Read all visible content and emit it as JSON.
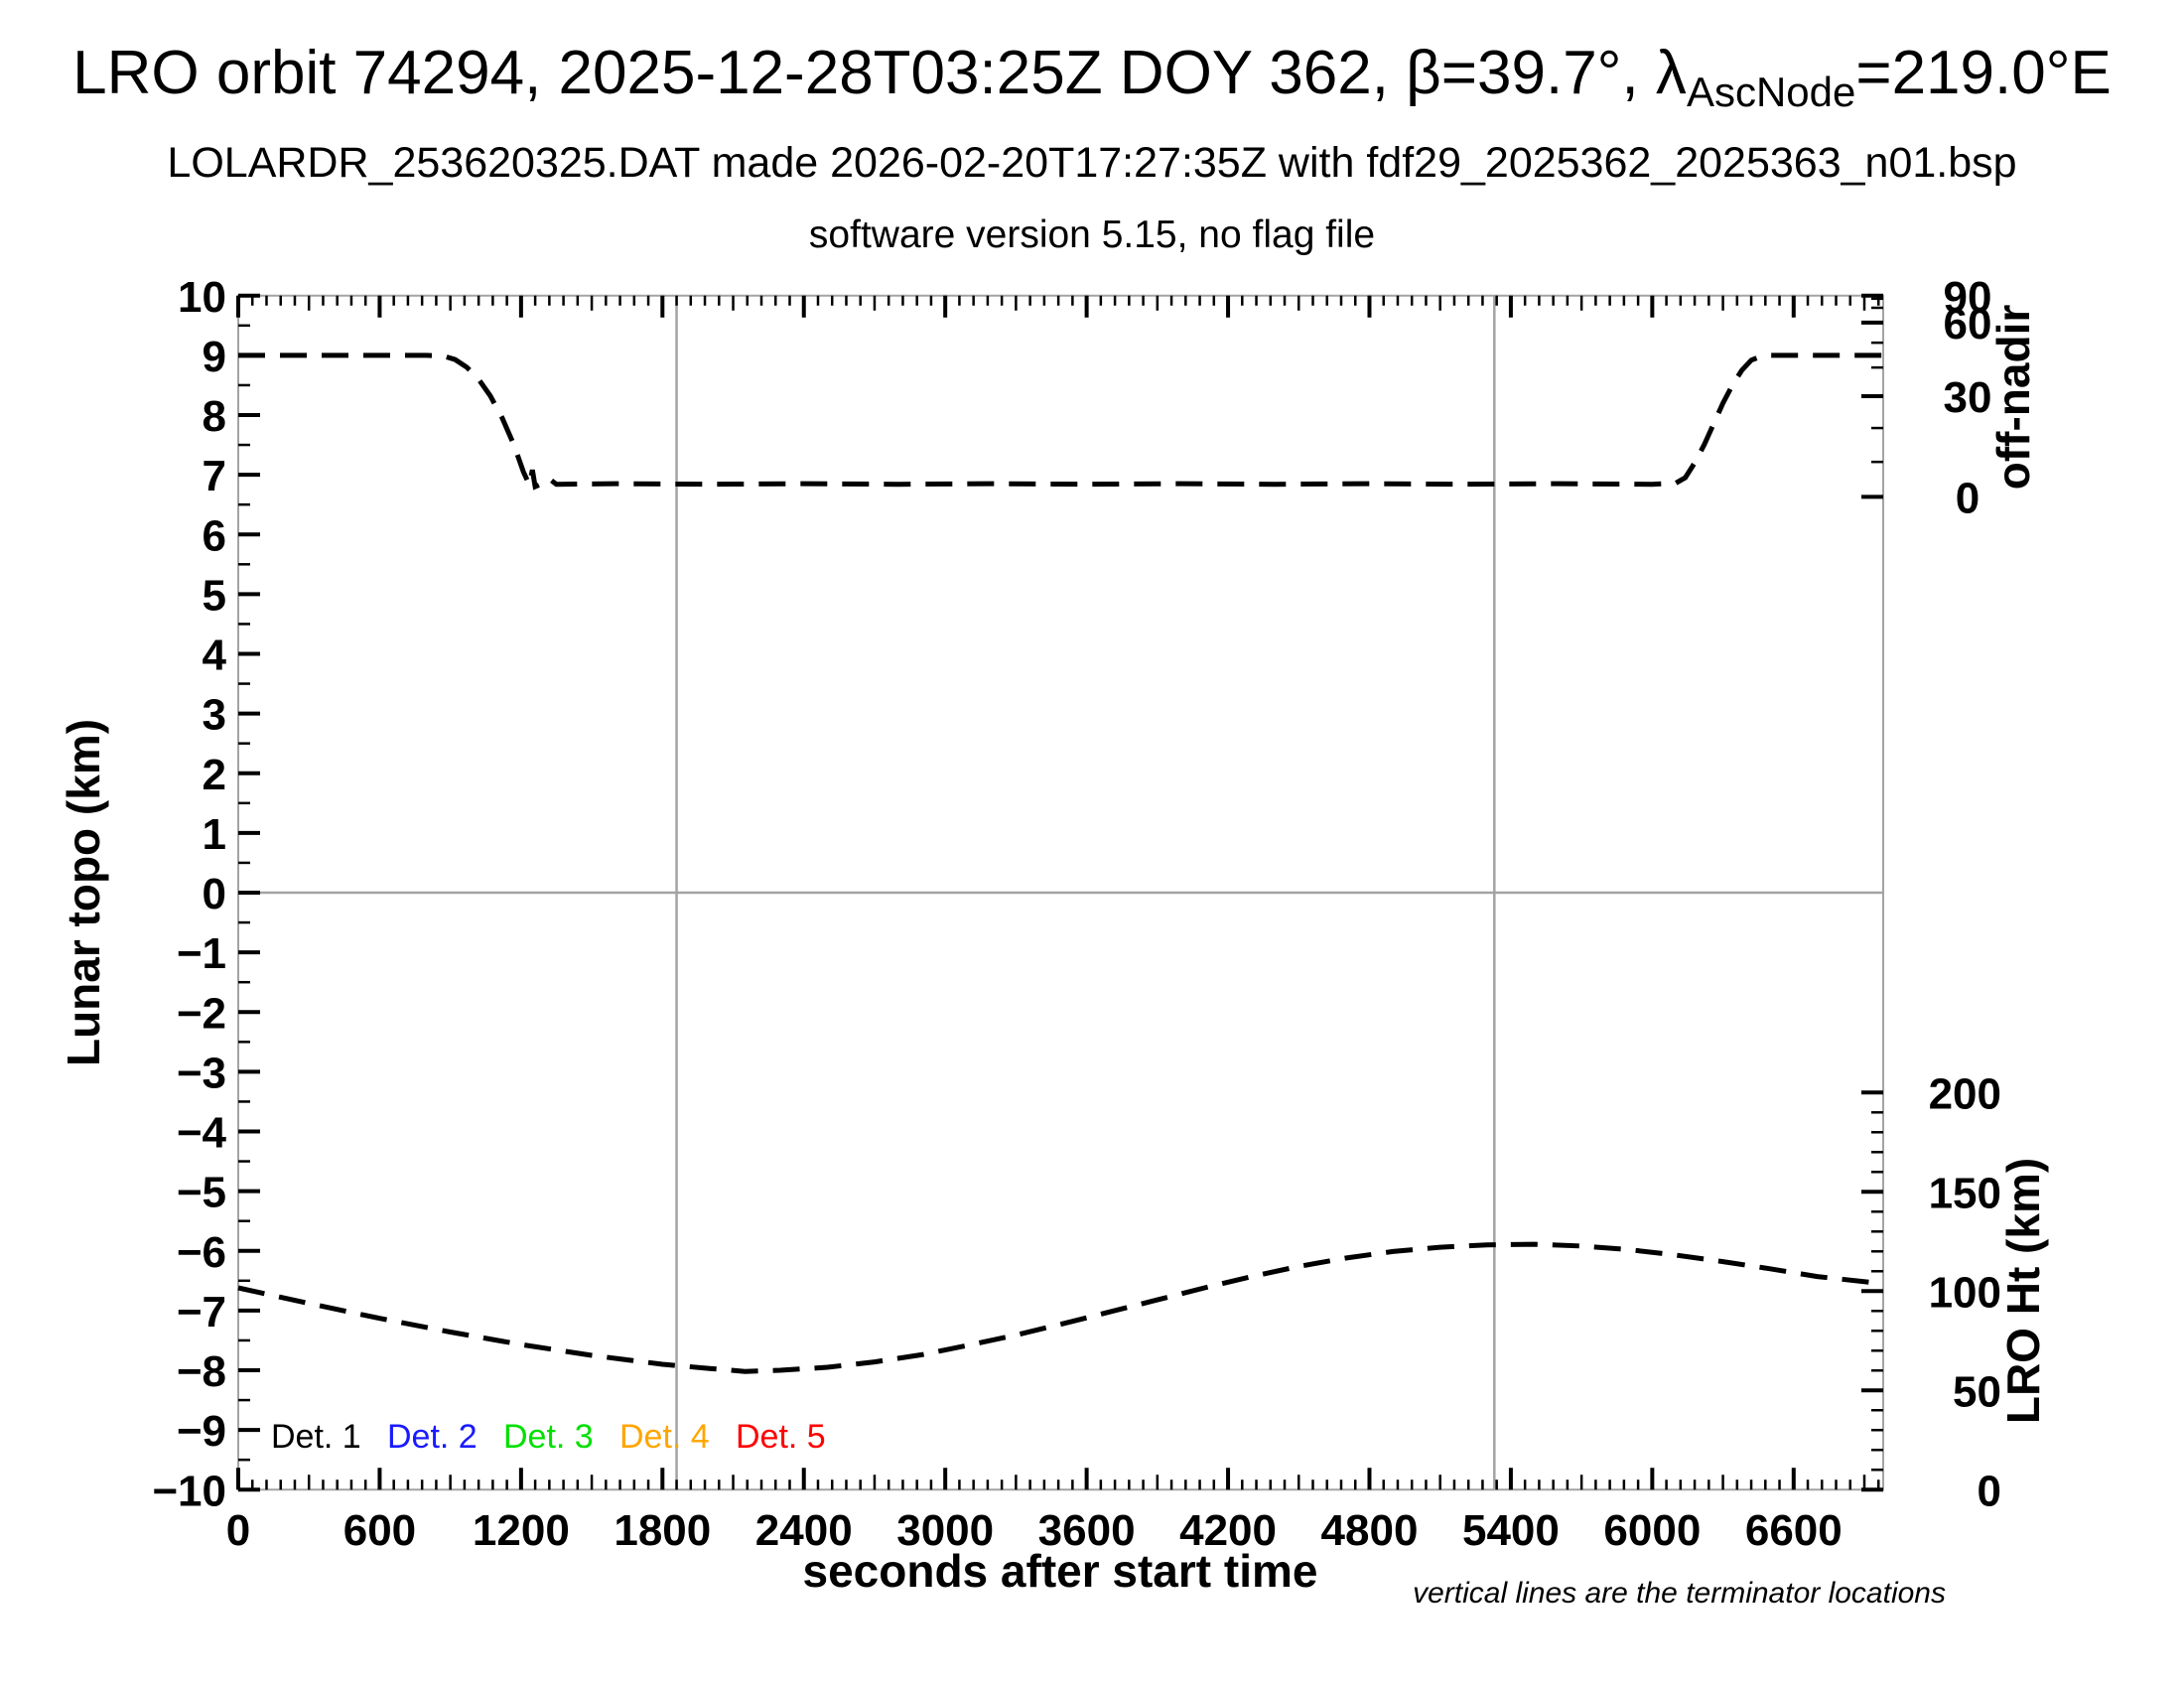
{
  "chart_data": {
    "type": "line",
    "title": {
      "prefix": "LRO orbit 74294, 2025-12-28T03:25Z DOY 362, β=39.7°, λ",
      "subscript": "AscNode",
      "suffix": "=219.0°E"
    },
    "subtitle": "LOLARDR_253620325.DAT made 2026-02-20T17:27:35Z with fdf29_2025362_2025363_n01.bsp",
    "subtitle2": "software version 5.15, no flag file",
    "note": "vertical lines are the terminator locations",
    "x_axis": {
      "label": "seconds after start time",
      "min": 0,
      "max": 6980,
      "major_tick_step": 600,
      "medium_tick_step": 300,
      "minor_tick_step": 60,
      "tick_labels": [
        0,
        600,
        1200,
        1800,
        2400,
        3000,
        3600,
        4200,
        4800,
        5400,
        6000,
        6600
      ]
    },
    "left_axis": {
      "label": "Lunar topo (km)",
      "min": -10,
      "max": 10,
      "major_tick_step": 1,
      "minor_tick_step": 0.5,
      "tick_labels": [
        -10,
        -9,
        -8,
        -7,
        -6,
        -5,
        -4,
        -3,
        -2,
        -1,
        0,
        1,
        2,
        3,
        4,
        5,
        6,
        7,
        8,
        9,
        10
      ]
    },
    "right_top_axis": {
      "label": "off-nadir",
      "unit": "degrees",
      "tick_labels": [
        90,
        60,
        30,
        0
      ],
      "minor_tick_step_deg": 10,
      "scale": "sine",
      "topo_at_0deg": 6.63,
      "topo_amplitude": 3.37
    },
    "right_bottom_axis": {
      "label": "LRO Ht (km)",
      "unit": "km",
      "tick_labels": [
        200,
        150,
        100,
        50,
        0
      ],
      "minor_tick_step_km": 10,
      "topo_at_0km": -10,
      "topo_per_km": 0.03326
    },
    "terminators_s": [
      1860,
      5330
    ],
    "zero_line_topo": 0,
    "grid_color": "#a3a3a3",
    "curve_color": "#000000",
    "legend": {
      "items": [
        {
          "label": "Det. 1",
          "color": "#000000"
        },
        {
          "label": "Det. 2",
          "color": "#1a1aff"
        },
        {
          "label": "Det. 3",
          "color": "#00e000"
        },
        {
          "label": "Det. 4",
          "color": "#ffa500"
        },
        {
          "label": "Det. 5",
          "color": "#ff0000"
        }
      ]
    },
    "series": [
      {
        "name": "off-nadir angle",
        "axis": "right_top",
        "style": "dashed",
        "approx_deg": {
          "edges": 44.7,
          "middle": 3.5,
          "slew_down_s": [
            890,
            1235
          ],
          "slew_up_s": [
            6130,
            6500
          ]
        },
        "points_s_topo": [
          [
            0,
            9.0
          ],
          [
            300,
            9.0
          ],
          [
            600,
            9.0
          ],
          [
            800,
            9.0
          ],
          [
            870,
            8.99
          ],
          [
            920,
            8.93
          ],
          [
            970,
            8.8
          ],
          [
            1020,
            8.6
          ],
          [
            1070,
            8.32
          ],
          [
            1120,
            7.95
          ],
          [
            1170,
            7.5
          ],
          [
            1210,
            7.05
          ],
          [
            1235,
            6.83
          ],
          [
            1248,
            7.08
          ],
          [
            1260,
            6.8
          ],
          [
            1290,
            6.85
          ],
          [
            1320,
            6.93
          ],
          [
            1350,
            6.84
          ],
          [
            1600,
            6.85
          ],
          [
            2000,
            6.84
          ],
          [
            2400,
            6.85
          ],
          [
            2800,
            6.84
          ],
          [
            3200,
            6.85
          ],
          [
            3600,
            6.84
          ],
          [
            4000,
            6.85
          ],
          [
            4400,
            6.84
          ],
          [
            4800,
            6.85
          ],
          [
            5200,
            6.84
          ],
          [
            5600,
            6.85
          ],
          [
            6000,
            6.84
          ],
          [
            6100,
            6.86
          ],
          [
            6140,
            6.95
          ],
          [
            6180,
            7.2
          ],
          [
            6220,
            7.5
          ],
          [
            6260,
            7.85
          ],
          [
            6300,
            8.2
          ],
          [
            6340,
            8.5
          ],
          [
            6380,
            8.75
          ],
          [
            6420,
            8.92
          ],
          [
            6460,
            8.98
          ],
          [
            6500,
            9.0
          ],
          [
            6700,
            9.0
          ],
          [
            6980,
            9.0
          ]
        ]
      },
      {
        "name": "LRO height",
        "axis": "right_bottom",
        "style": "dashed",
        "height_km_keypoints": {
          "start": 101.7,
          "min": 59.6,
          "min_at_s": 2150,
          "max": 123.6,
          "max_at_s": 5500,
          "end": 103.8
        },
        "points_s_topo": [
          [
            0,
            -6.62
          ],
          [
            300,
            -6.88
          ],
          [
            600,
            -7.13
          ],
          [
            900,
            -7.36
          ],
          [
            1200,
            -7.57
          ],
          [
            1500,
            -7.75
          ],
          [
            1800,
            -7.9
          ],
          [
            2000,
            -7.97
          ],
          [
            2150,
            -8.02
          ],
          [
            2300,
            -8.0
          ],
          [
            2500,
            -7.95
          ],
          [
            2700,
            -7.86
          ],
          [
            2900,
            -7.74
          ],
          [
            3100,
            -7.58
          ],
          [
            3300,
            -7.41
          ],
          [
            3500,
            -7.22
          ],
          [
            3700,
            -7.02
          ],
          [
            3900,
            -6.82
          ],
          [
            4100,
            -6.62
          ],
          [
            4300,
            -6.43
          ],
          [
            4500,
            -6.26
          ],
          [
            4700,
            -6.12
          ],
          [
            4900,
            -6.01
          ],
          [
            5100,
            -5.94
          ],
          [
            5300,
            -5.9
          ],
          [
            5500,
            -5.89
          ],
          [
            5700,
            -5.92
          ],
          [
            5900,
            -5.98
          ],
          [
            6100,
            -6.07
          ],
          [
            6300,
            -6.18
          ],
          [
            6500,
            -6.3
          ],
          [
            6700,
            -6.43
          ],
          [
            6980,
            -6.55
          ]
        ],
        "height_km": [
          101.7,
          93.8,
          86.3,
          79.4,
          73.1,
          67.7,
          63.2,
          61.1,
          59.6,
          60.2,
          61.7,
          64.4,
          68.0,
          72.8,
          77.9,
          83.6,
          89.6,
          95.7,
          101.7,
          107.4,
          112.5,
          116.7,
          120.0,
          122.1,
          123.3,
          123.6,
          122.7,
          120.9,
          118.2,
          114.9,
          111.3,
          107.4,
          103.8
        ]
      }
    ]
  }
}
